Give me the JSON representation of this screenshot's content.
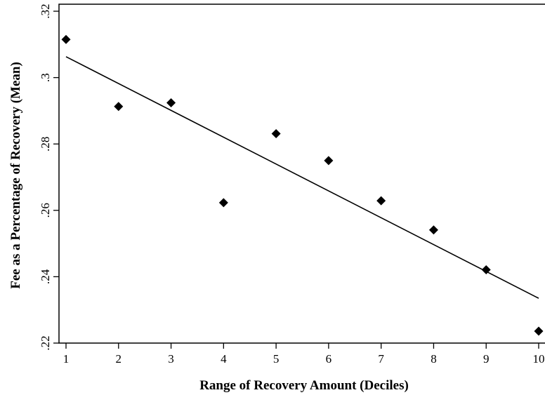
{
  "chart_data": {
    "type": "scatter",
    "title": "",
    "xlabel": "Range of Recovery Amount (Deciles)",
    "ylabel": "Fee as a Percentage of Recovery (Mean)",
    "xlim": [
      1,
      10
    ],
    "ylim": [
      0.22,
      0.32
    ],
    "x_ticks": [
      1,
      2,
      3,
      4,
      5,
      6,
      7,
      8,
      9,
      10
    ],
    "x_tick_labels": [
      "1",
      "2",
      "3",
      "4",
      "5",
      "6",
      "7",
      "8",
      "9",
      "10"
    ],
    "y_ticks": [
      0.22,
      0.24,
      0.26,
      0.28,
      0.3,
      0.32
    ],
    "y_tick_labels": [
      ".22",
      ".24",
      ".26",
      ".28",
      ".3",
      ".32"
    ],
    "grid": false,
    "marker": "diamond",
    "points": [
      {
        "x": 1,
        "y": 0.3115
      },
      {
        "x": 2,
        "y": 0.2913
      },
      {
        "x": 3,
        "y": 0.2924
      },
      {
        "x": 4,
        "y": 0.2623
      },
      {
        "x": 5,
        "y": 0.2831
      },
      {
        "x": 6,
        "y": 0.275
      },
      {
        "x": 7,
        "y": 0.2629
      },
      {
        "x": 8,
        "y": 0.2541
      },
      {
        "x": 9,
        "y": 0.2421
      },
      {
        "x": 10,
        "y": 0.2236
      }
    ],
    "fit_line": {
      "type": "linear",
      "start": {
        "x": 1,
        "y": 0.3063
      },
      "end": {
        "x": 10,
        "y": 0.2335
      }
    },
    "colors": {
      "marker": "#000000",
      "line": "#000000",
      "background": "#ffffff"
    }
  }
}
